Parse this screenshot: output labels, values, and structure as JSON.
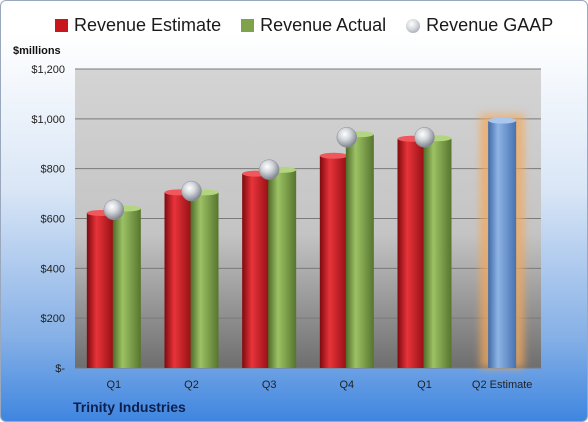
{
  "chart_data": {
    "type": "bar",
    "units_label": "$millions",
    "company": "Trinity Industries",
    "categories": [
      "Q1",
      "Q2",
      "Q3",
      "Q4",
      "Q1",
      "Q2 Estimate"
    ],
    "y_ticks": [
      "$-",
      "$200",
      "$400",
      "$600",
      "$800",
      "$1,000",
      "$1,200"
    ],
    "y_tick_values": [
      0,
      200,
      400,
      600,
      800,
      1000,
      1200
    ],
    "ylim": [
      0,
      1200
    ],
    "grid": true,
    "legend_position": "top",
    "series": [
      {
        "name": "Revenue Estimate",
        "color": "#c8161d",
        "values": [
          622,
          705,
          780,
          852,
          920,
          993
        ]
      },
      {
        "name": "Revenue Actual",
        "color": "#7fa34a",
        "values": [
          640,
          705,
          795,
          938,
          922,
          null
        ]
      },
      {
        "name": "Revenue GAAP",
        "color": "#b9bcc2",
        "values": [
          635,
          710,
          796,
          926,
          926,
          null
        ]
      }
    ],
    "estimate_bar_color": "#6f9bd8",
    "estimate_glow_color": "#f4a85a"
  }
}
